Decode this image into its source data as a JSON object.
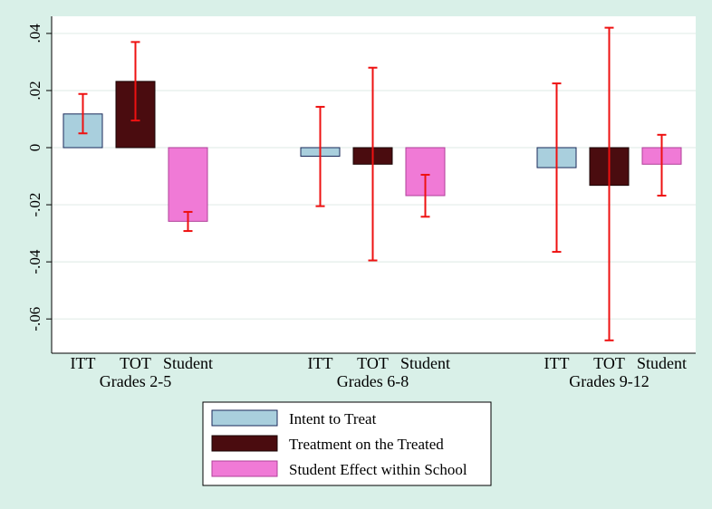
{
  "chart_data": {
    "type": "bar",
    "groups": [
      "Grades 2-5",
      "Grades 6-8",
      "Grades 9-12"
    ],
    "bar_labels": [
      "ITT",
      "TOT",
      "Student"
    ],
    "series": [
      {
        "name": "Intent to Treat",
        "key": "ITT",
        "color": "#a9cfdd",
        "values": [
          0.0118,
          -0.003,
          -0.007
        ],
        "ci_low": [
          0.005,
          -0.0205,
          -0.0365
        ],
        "ci_high": [
          0.0188,
          0.0143,
          0.0225
        ]
      },
      {
        "name": "Treatment on the Treated",
        "key": "TOT",
        "color": "#4a0c0f",
        "values": [
          0.0232,
          -0.0058,
          -0.0132
        ],
        "ci_low": [
          0.0095,
          -0.0395,
          -0.0675
        ],
        "ci_high": [
          0.037,
          0.028,
          0.042
        ]
      },
      {
        "name": "Student Effect within School",
        "key": "Student",
        "color": "#f07ad6",
        "values": [
          -0.0258,
          -0.0168,
          -0.0058
        ],
        "ci_low": [
          -0.0292,
          -0.0242,
          -0.0168
        ],
        "ci_high": [
          -0.0225,
          -0.0095,
          0.0045
        ]
      }
    ],
    "ylim": [
      -0.072,
      0.046
    ],
    "yticks": [
      0.04,
      0.02,
      0,
      -0.02,
      -0.04,
      -0.06
    ],
    "ytick_labels": [
      ".04",
      ".02",
      "0",
      "-.02",
      "-.04",
      "-.06"
    ],
    "grid": true,
    "error_bar_color": "#ee1111",
    "legend_position": "bottom-center"
  }
}
